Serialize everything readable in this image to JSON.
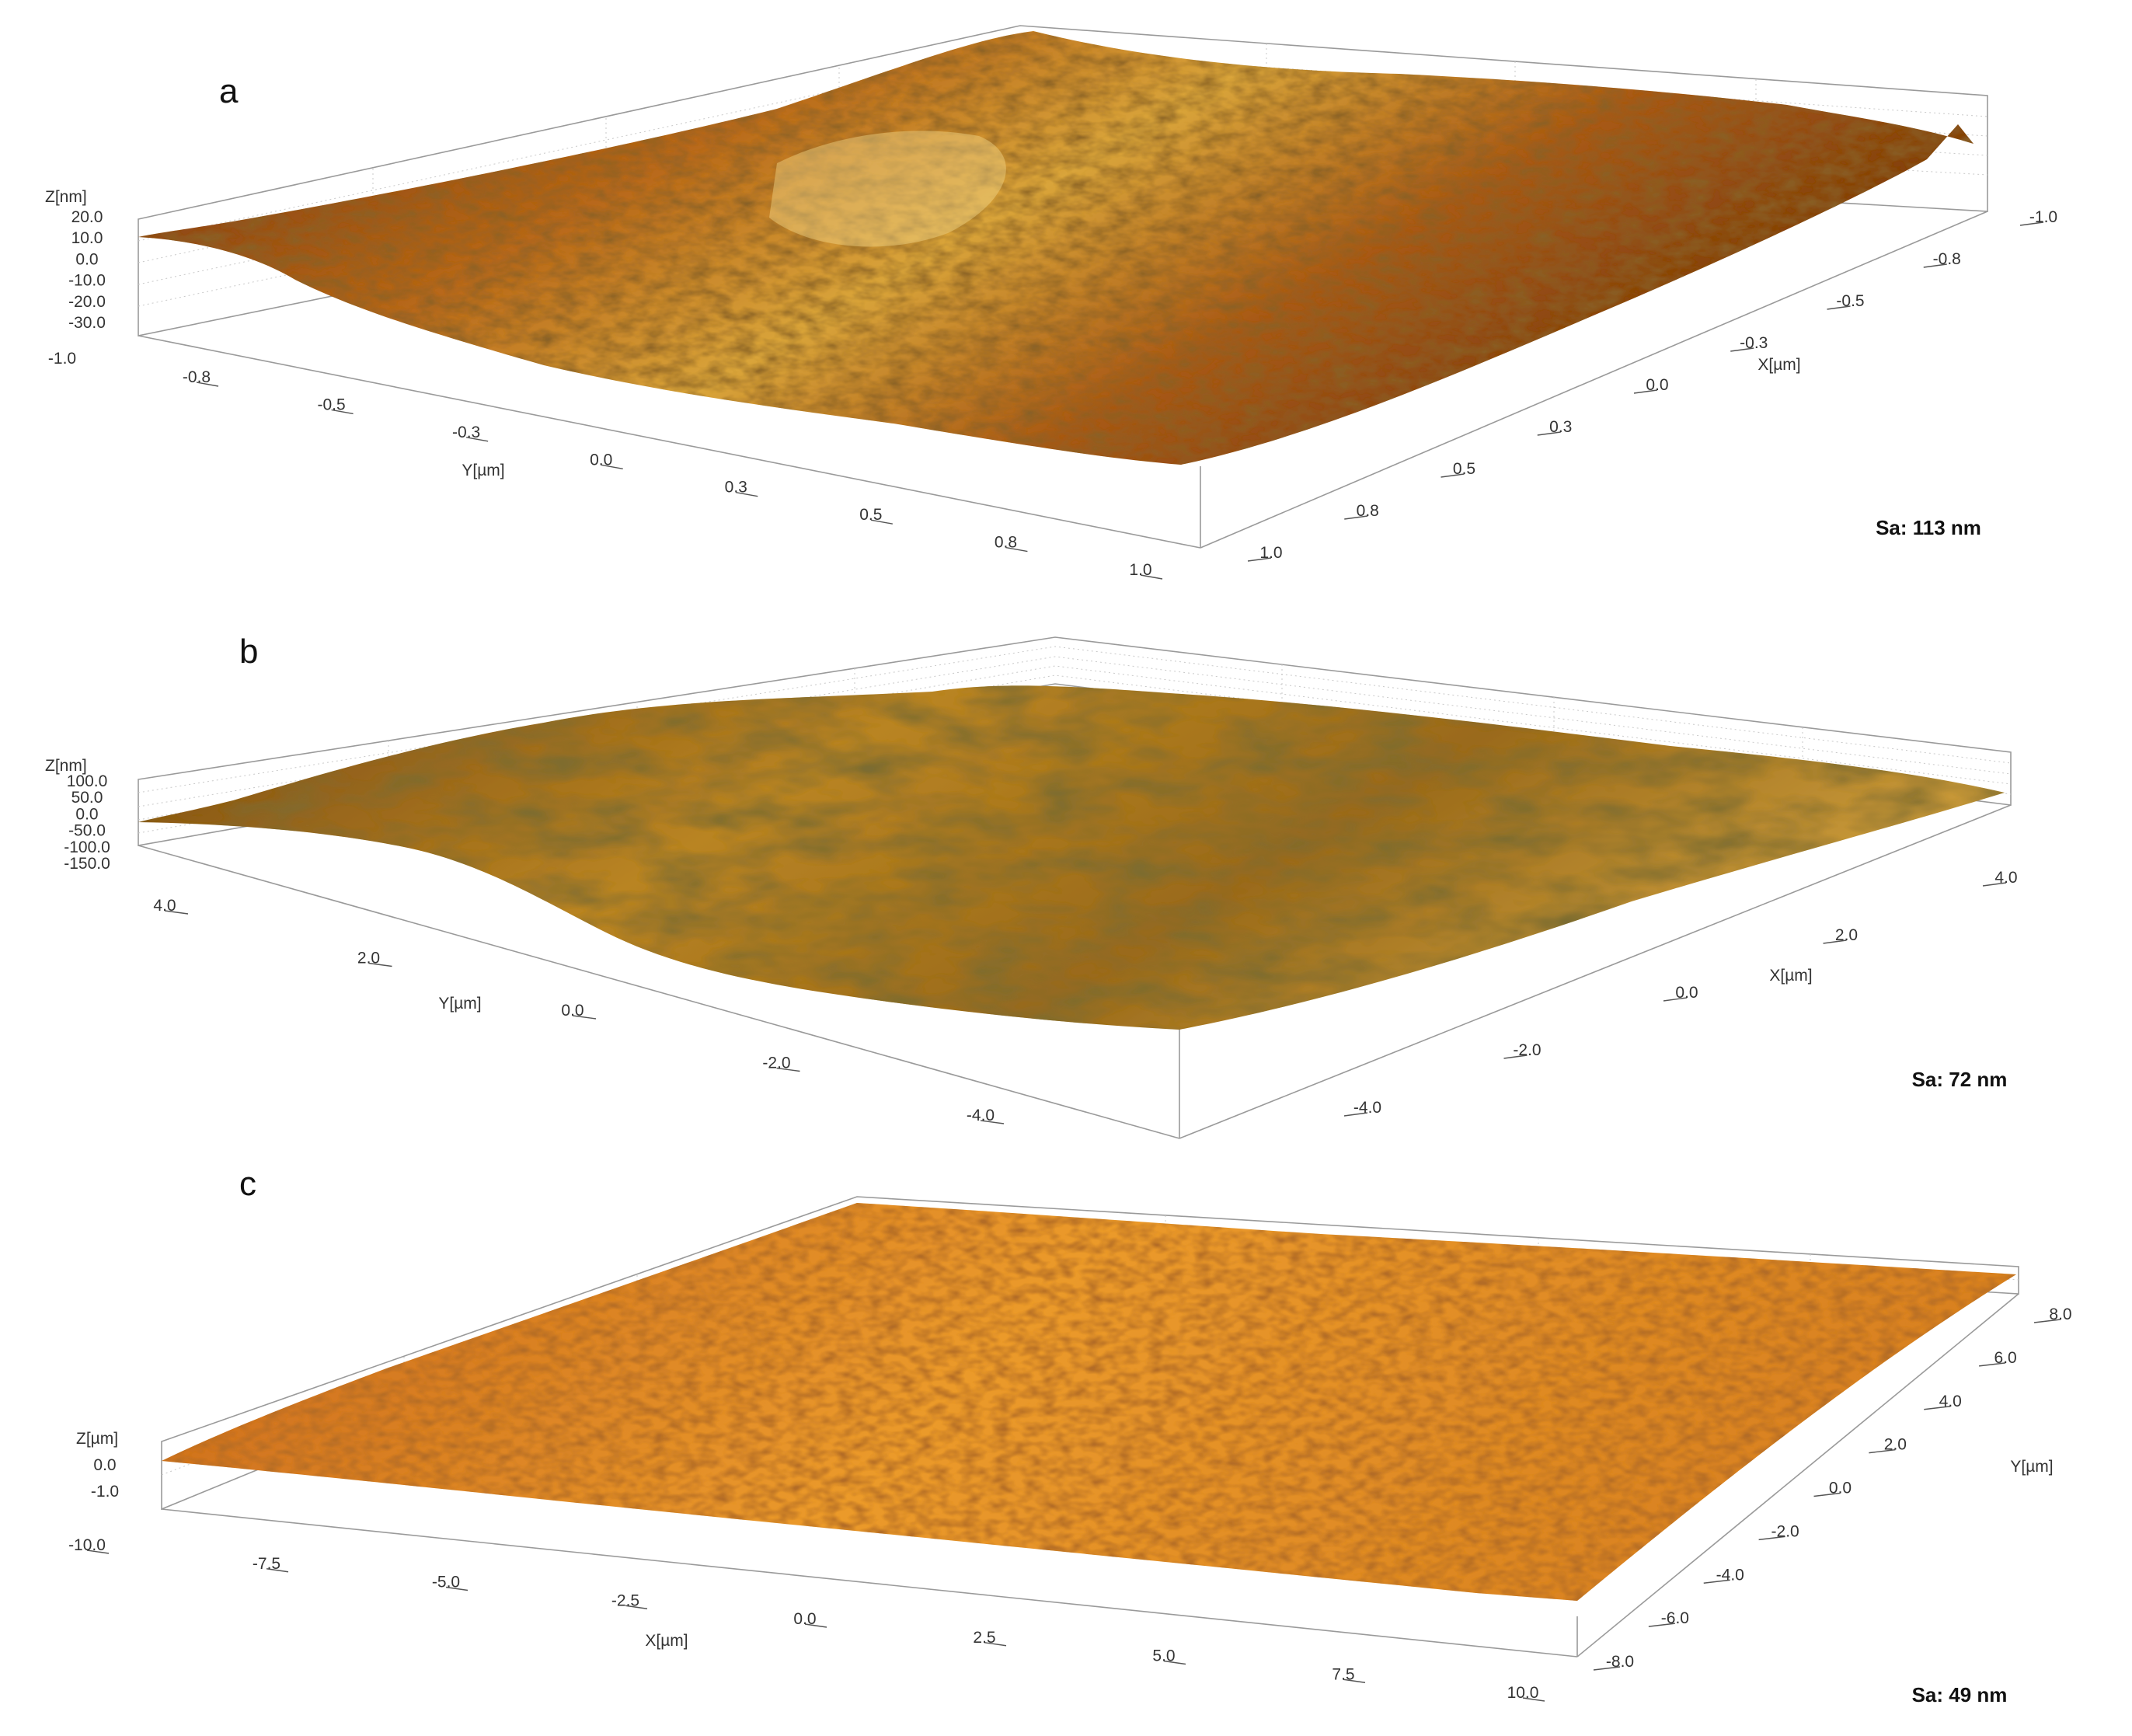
{
  "chart_data": [
    {
      "type": "surface3d",
      "panel_label": "a",
      "z_label": "Z[nm]",
      "z_ticks": [
        "20.0",
        "10.0",
        "0.0",
        "-10.0",
        "-20.0",
        "-30.0"
      ],
      "y_label": "Y[µm]",
      "y_ticks": [
        "-1.0",
        "-0.8",
        "-0.5",
        "-0.3",
        "0.0",
        "0.3",
        "0.5",
        "0.8",
        "1.0"
      ],
      "x_label": "X[µm]",
      "x_ticks": [
        "-1.0",
        "-0.8",
        "-0.5",
        "-0.3",
        "0.0",
        "0.3",
        "0.5",
        "0.8",
        "1.0"
      ],
      "roughness": "Sa: 113 nm",
      "colors": [
        "#5a2308",
        "#a34a12",
        "#d98a1f",
        "#e8c15a",
        "#f6e6b0"
      ]
    },
    {
      "type": "surface3d",
      "panel_label": "b",
      "z_label": "Z[nm]",
      "z_ticks": [
        "100.0",
        "50.0",
        "0.0",
        "-50.0",
        "-100.0",
        "-150.0"
      ],
      "y_label": "Y[µm]",
      "y_ticks": [
        "4.0",
        "2.0",
        "0.0",
        "-2.0",
        "-4.0"
      ],
      "x_label": "X[µm]",
      "x_ticks": [
        "4.0",
        "2.0",
        "0.0",
        "-2.0",
        "-4.0"
      ],
      "roughness": "Sa: 72 nm",
      "colors": [
        "#4a3a12",
        "#8a5a18",
        "#c08a22",
        "#d9a93a",
        "#efd38a"
      ]
    },
    {
      "type": "surface3d",
      "panel_label": "c",
      "z_label": "Z[µm]",
      "z_ticks": [
        "0.0",
        "-1.0"
      ],
      "x_label": "X[µm]",
      "x_ticks": [
        "-10.0",
        "-7.5",
        "-5.0",
        "-2.5",
        "0.0",
        "2.5",
        "5.0",
        "7.5",
        "10.0"
      ],
      "y_label": "Y[µm]",
      "y_ticks": [
        "8.0",
        "6.0",
        "4.0",
        "2.0",
        "0.0",
        "-2.0",
        "-4.0",
        "-6.0",
        "-8.0"
      ],
      "roughness": "Sa: 49 nm",
      "colors": [
        "#6a1e04",
        "#c2500e",
        "#ec8a1e",
        "#f6b548",
        "#ffe29a"
      ]
    }
  ]
}
